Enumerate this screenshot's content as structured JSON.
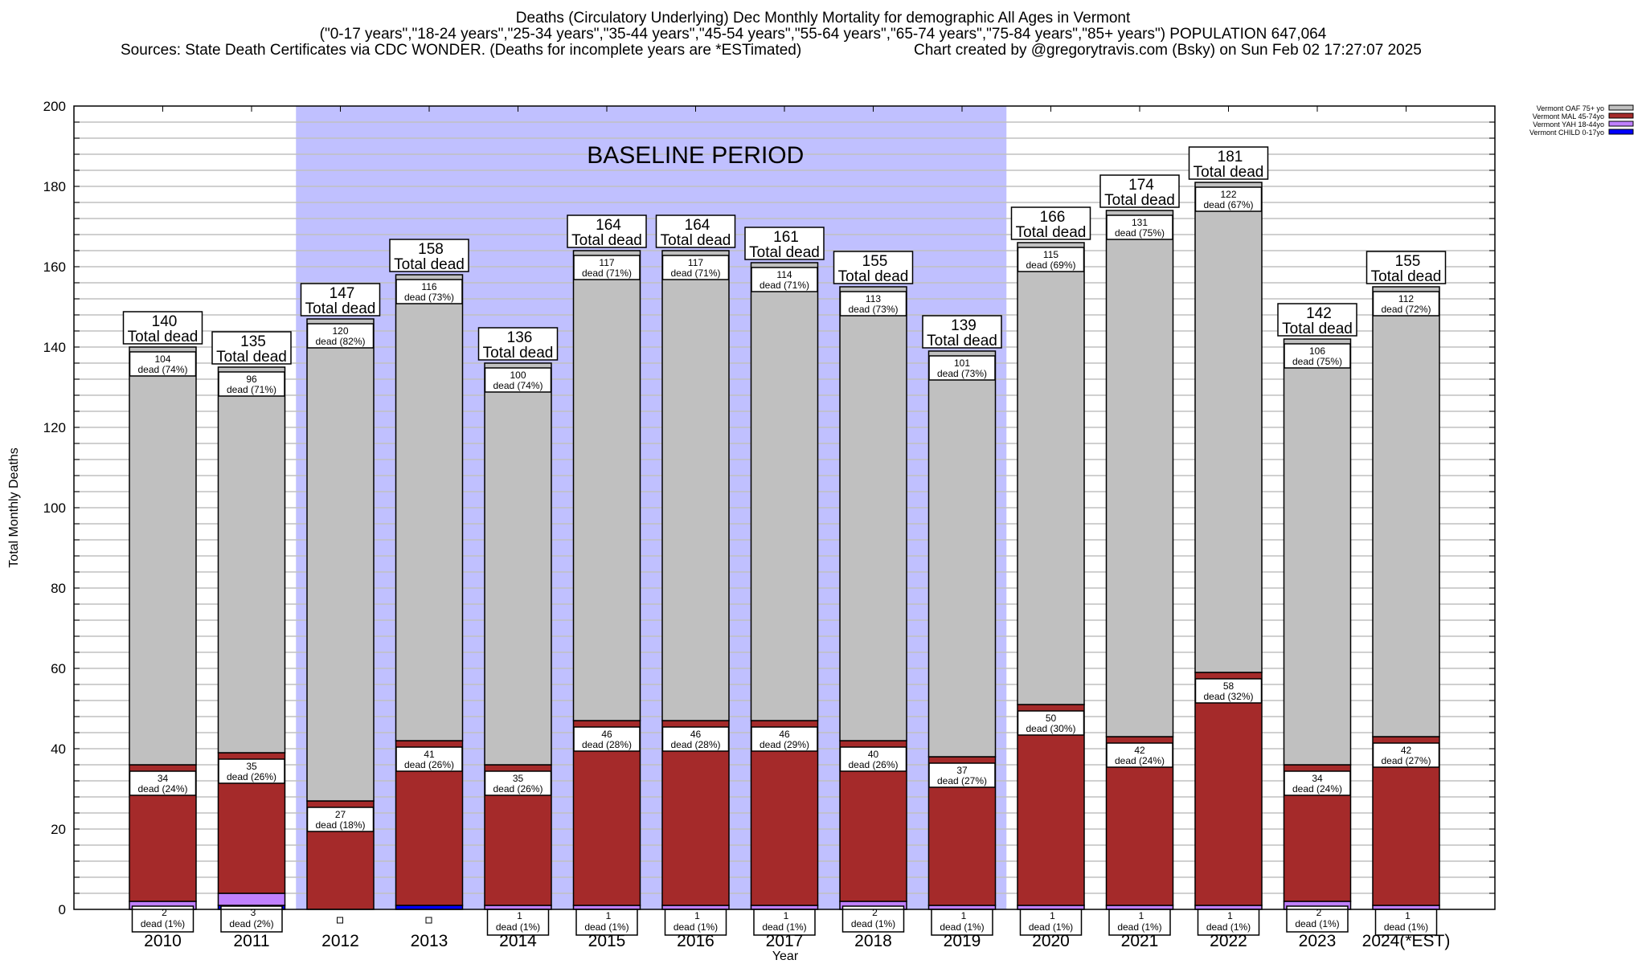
{
  "header": {
    "title_line1": "Deaths (Circulatory Underlying) Dec Monthly Mortality for demographic All Ages in Vermont",
    "title_line2": "(\"0-17 years\",\"18-24 years\",\"25-34 years\",\"35-44 years\",\"45-54 years\",\"55-64 years\",\"65-74 years\",\"75-84 years\",\"85+ years\") POPULATION 647,064",
    "sources": "Sources: State Death Certificates via CDC WONDER. (Deaths for incomplete years are *ESTimated)",
    "credit": "Chart created by @gregorytravis.com (Bsky) on Sun Feb 02 17:27:07 2025"
  },
  "chart_data": {
    "type": "bar",
    "stacked": true,
    "title": "Deaths (Circulatory Underlying) Dec Monthly Mortality for demographic All Ages in Vermont",
    "xlabel": "Year",
    "ylabel": "Total Monthly Deaths",
    "ylim": [
      0,
      200
    ],
    "yticks": [
      0,
      20,
      40,
      60,
      80,
      100,
      120,
      140,
      160,
      180,
      200
    ],
    "grid": true,
    "legend_position": "top-right",
    "annotation": "BASELINE PERIOD",
    "baseline_period": [
      "2012",
      "2019"
    ],
    "total_label_suffix": "Total dead",
    "segment_label_word": "dead",
    "categories": [
      "2010",
      "2011",
      "2012",
      "2013",
      "2014",
      "2015",
      "2016",
      "2017",
      "2018",
      "2019",
      "2020",
      "2021",
      "2022",
      "2023",
      "2024(*EST)"
    ],
    "totals": [
      140,
      135,
      147,
      158,
      136,
      164,
      164,
      161,
      155,
      139,
      166,
      174,
      181,
      142,
      155
    ],
    "series": [
      {
        "name": "Vermont CHILD 0-17yo",
        "color": "#0000ff",
        "values": [
          0,
          1,
          0,
          1,
          0,
          0,
          0,
          0,
          0,
          0,
          0,
          0,
          0,
          0,
          0
        ]
      },
      {
        "name": "Vermont YAH 18-44yo",
        "color": "#c080ff",
        "values": [
          2,
          3,
          0,
          0,
          1,
          1,
          1,
          1,
          2,
          1,
          1,
          1,
          1,
          2,
          1
        ],
        "pct": [
          "1%",
          "2%",
          "",
          "",
          "1%",
          "1%",
          "1%",
          "1%",
          "1%",
          "1%",
          "1%",
          "1%",
          "1%",
          "1%",
          "1%"
        ]
      },
      {
        "name": "Vermont MAL 45-74yo",
        "color": "#a52a2a",
        "values": [
          34,
          35,
          27,
          41,
          35,
          46,
          46,
          46,
          40,
          37,
          50,
          42,
          58,
          34,
          42
        ],
        "pct": [
          "24%",
          "26%",
          "18%",
          "26%",
          "26%",
          "28%",
          "28%",
          "29%",
          "26%",
          "27%",
          "30%",
          "24%",
          "32%",
          "24%",
          "27%"
        ]
      },
      {
        "name": "Vermont OAF 75+ yo",
        "color": "#c0c0c0",
        "values": [
          104,
          96,
          120,
          116,
          100,
          117,
          117,
          114,
          113,
          101,
          115,
          131,
          122,
          106,
          112
        ],
        "pct": [
          "74%",
          "71%",
          "82%",
          "73%",
          "74%",
          "71%",
          "71%",
          "71%",
          "73%",
          "73%",
          "69%",
          "75%",
          "67%",
          "75%",
          "72%"
        ]
      }
    ],
    "legend_order": [
      "Vermont OAF 75+ yo",
      "Vermont MAL 45-74yo",
      "Vermont YAH 18-44yo",
      "Vermont CHILD 0-17yo"
    ],
    "baseline_color": "#c0c0ff"
  }
}
